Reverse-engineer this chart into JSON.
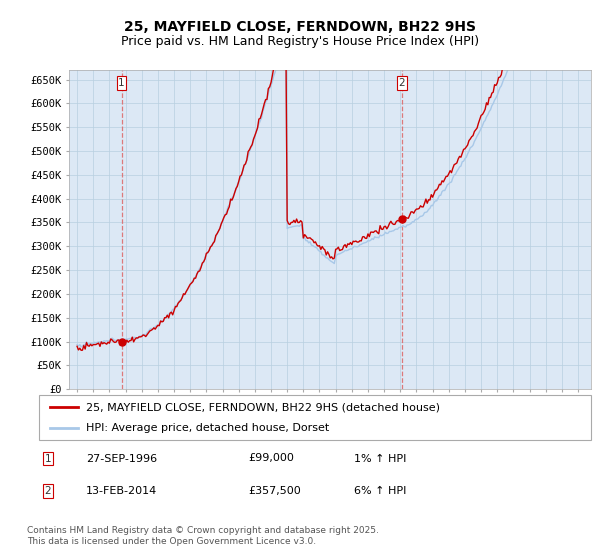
{
  "title": "25, MAYFIELD CLOSE, FERNDOWN, BH22 9HS",
  "subtitle": "Price paid vs. HM Land Registry's House Price Index (HPI)",
  "ylim": [
    0,
    670000
  ],
  "yticks": [
    0,
    50000,
    100000,
    150000,
    200000,
    250000,
    300000,
    350000,
    400000,
    450000,
    500000,
    550000,
    600000,
    650000
  ],
  "ytick_labels": [
    "£0",
    "£50K",
    "£100K",
    "£150K",
    "£200K",
    "£250K",
    "£300K",
    "£350K",
    "£400K",
    "£450K",
    "£500K",
    "£550K",
    "£600K",
    "£650K"
  ],
  "hpi_color": "#a8c8e8",
  "price_color": "#cc0000",
  "plot_bg_color": "#dce8f5",
  "grid_color": "#b8cfe0",
  "background_color": "#ffffff",
  "vline_color": "#dd6666",
  "sale1_year": 1996.75,
  "sale1_price": 99000,
  "sale2_year": 2014.1,
  "sale2_price": 357500,
  "annotation1": [
    "1",
    "27-SEP-1996",
    "£99,000",
    "1% ↑ HPI"
  ],
  "annotation2": [
    "2",
    "13-FEB-2014",
    "£357,500",
    "6% ↑ HPI"
  ],
  "legend_label1": "25, MAYFIELD CLOSE, FERNDOWN, BH22 9HS (detached house)",
  "legend_label2": "HPI: Average price, detached house, Dorset",
  "footnote": "Contains HM Land Registry data © Crown copyright and database right 2025.\nThis data is licensed under the Open Government Licence v3.0.",
  "title_fontsize": 10,
  "subtitle_fontsize": 9,
  "tick_fontsize": 7.5
}
